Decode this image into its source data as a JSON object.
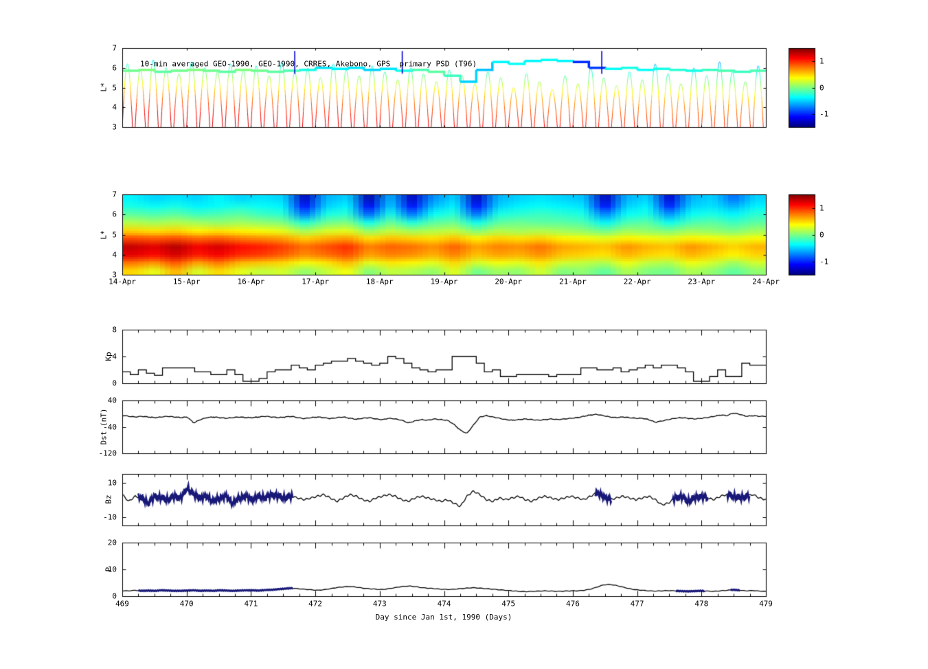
{
  "figure": {
    "bg": "#ffffff"
  },
  "xaxis": {
    "label": "Day since Jan 1st, 1990 (Days)",
    "tick_labels": [
      "469",
      "470",
      "471",
      "472",
      "473",
      "474",
      "475",
      "476",
      "477",
      "478",
      "479"
    ]
  },
  "chart_data": [
    {
      "id": "psd-passes",
      "type": "scatter",
      "title": "10-min averaged GEO-1990, GEO-1990, CRRES, Akebono, GPS  primary PSD (T96)",
      "ylabel": "L*",
      "ylim": [
        3,
        7
      ],
      "yticks": [
        7,
        6,
        5,
        4,
        3
      ],
      "xlim": [
        469,
        479
      ],
      "clim": [
        -1.5,
        1.5
      ],
      "colorbar_ticks": [
        1,
        0,
        -1
      ],
      "psd_profile": [
        [
          3,
          1.35
        ],
        [
          4,
          1.05
        ],
        [
          4.5,
          0.8
        ],
        [
          5,
          0.5
        ],
        [
          5.5,
          0.15
        ],
        [
          6,
          -0.15
        ],
        [
          6.5,
          -0.5
        ],
        [
          7,
          -0.7
        ]
      ],
      "time_fade": -0.35,
      "pass_width": 0.16,
      "passes": {
        "t0": 469.08,
        "dt": 0.2,
        "peaks": [
          6.2,
          5.9,
          6.4,
          6.0,
          5.7,
          6.3,
          6.0,
          5.8,
          6.2,
          5.9,
          6.1,
          5.6,
          6.3,
          5.8,
          6.0,
          5.5,
          6.2,
          5.9,
          5.6,
          6.1,
          5.8,
          5.4,
          6.0,
          5.7,
          5.3,
          5.9,
          5.6,
          5.2,
          5.8,
          5.5,
          5.0,
          5.7,
          5.3,
          4.9,
          5.6,
          5.2,
          6.0,
          5.5,
          5.1,
          5.8,
          5.4,
          6.2,
          5.7,
          5.2,
          6.0,
          5.6,
          6.3,
          5.8,
          5.3,
          6.1
        ]
      },
      "geo_band": {
        "x": [
          469,
          469.25,
          469.5,
          469.75,
          470,
          470.25,
          470.5,
          470.75,
          471,
          471.25,
          471.5,
          471.75,
          472,
          472.25,
          472.5,
          472.75,
          473,
          473.25,
          473.5,
          473.75,
          474,
          474.25,
          474.5,
          474.75,
          475,
          475.25,
          475.5,
          475.75,
          476,
          476.25,
          476.5,
          476.75,
          477,
          477.25,
          477.5,
          477.75,
          478,
          478.25,
          478.5,
          478.75,
          479
        ],
        "L": [
          5.85,
          5.9,
          5.8,
          5.85,
          5.9,
          5.85,
          5.8,
          5.9,
          5.85,
          5.8,
          5.85,
          5.9,
          6.0,
          5.95,
          6.0,
          5.9,
          5.95,
          5.85,
          5.9,
          5.8,
          5.6,
          5.3,
          5.9,
          6.3,
          6.2,
          6.35,
          6.4,
          6.35,
          6.3,
          6.0,
          5.95,
          6.0,
          5.9,
          5.95,
          5.9,
          5.85,
          5.9,
          5.85,
          5.8,
          5.85,
          5.8
        ],
        "v": [
          -0.05,
          0,
          -0.1,
          -0.05,
          0,
          -0.05,
          -0.1,
          0,
          -0.05,
          -0.1,
          -0.15,
          -0.3,
          -0.45,
          -0.4,
          -0.45,
          -0.5,
          -0.45,
          -0.3,
          -0.15,
          -0.1,
          -0.2,
          -0.5,
          -0.55,
          -0.4,
          -0.35,
          -0.4,
          -0.35,
          -0.4,
          -1.0,
          -0.95,
          -0.35,
          -0.3,
          -0.35,
          -0.3,
          -0.25,
          -0.3,
          -0.2,
          -0.15,
          -0.2,
          -0.15,
          -0.2
        ]
      },
      "blue_spikes": [
        471.68,
        473.35,
        476.45
      ]
    },
    {
      "id": "psd-heatmap",
      "type": "heatmap",
      "ylabel": "L*",
      "ylim": [
        3,
        7
      ],
      "yticks": [
        7,
        6,
        5,
        4,
        3
      ],
      "xlim": [
        469,
        479
      ],
      "xtick_labels": [
        "14-Apr",
        "15-Apr",
        "16-Apr",
        "17-Apr",
        "18-Apr",
        "19-Apr",
        "20-Apr",
        "21-Apr",
        "22-Apr",
        "23-Apr",
        "24-Apr"
      ],
      "clim": [
        -1.5,
        1.5
      ],
      "colorbar_ticks": [
        1,
        0,
        -1
      ],
      "grid": {
        "cols": 30,
        "rows": 10,
        "values": [
          [
            -0.4,
            -0.5,
            -0.45,
            -0.5,
            -0.4,
            -0.5,
            -0.45,
            -0.5,
            -1.3,
            -0.6,
            -0.5,
            -1.35,
            -0.6,
            -1.3,
            -0.7,
            -0.5,
            -1.3,
            -0.6,
            -0.5,
            -0.45,
            -0.5,
            -0.55,
            -1.3,
            -0.6,
            -0.5,
            -1.25,
            -0.6,
            -0.5,
            -0.8,
            -0.5
          ],
          [
            -0.3,
            -0.35,
            -0.3,
            -0.4,
            -0.35,
            -0.3,
            -0.35,
            -0.4,
            -1.1,
            -0.5,
            -0.4,
            -1.15,
            -0.5,
            -1.1,
            -0.55,
            -0.4,
            -1.1,
            -0.5,
            -0.4,
            -0.35,
            -0.4,
            -0.45,
            -1.1,
            -0.5,
            -0.4,
            -1.05,
            -0.5,
            -0.45,
            -0.6,
            -0.4
          ],
          [
            -0.1,
            -0.15,
            -0.1,
            -0.2,
            -0.15,
            -0.1,
            -0.2,
            -0.25,
            -0.8,
            -0.3,
            -0.25,
            -0.85,
            -0.3,
            -0.8,
            -0.35,
            -0.25,
            -0.8,
            -0.3,
            -0.25,
            -0.2,
            -0.25,
            -0.3,
            -0.75,
            -0.35,
            -0.3,
            -0.7,
            -0.35,
            -0.3,
            -0.4,
            -0.25
          ],
          [
            0.15,
            0.1,
            0.15,
            0.1,
            0.05,
            0.1,
            0.05,
            0,
            -0.3,
            -0.05,
            0,
            -0.35,
            -0.05,
            -0.3,
            -0.1,
            -0.05,
            -0.35,
            -0.1,
            -0.05,
            -0.1,
            -0.1,
            -0.15,
            -0.4,
            -0.15,
            -0.1,
            -0.35,
            -0.15,
            -0.1,
            -0.2,
            -0.1
          ],
          [
            0.5,
            0.45,
            0.5,
            0.4,
            0.45,
            0.4,
            0.35,
            0.3,
            0.1,
            0.25,
            0.3,
            0.05,
            0.2,
            0.1,
            0.15,
            0.2,
            0,
            0.15,
            0.1,
            0.15,
            0.1,
            0.05,
            -0.05,
            0.1,
            0.05,
            0,
            0.1,
            0.05,
            0,
            0.1
          ],
          [
            0.9,
            0.85,
            0.9,
            0.8,
            0.85,
            0.75,
            0.7,
            0.65,
            0.5,
            0.6,
            0.65,
            0.45,
            0.55,
            0.5,
            0.45,
            0.55,
            0.4,
            0.5,
            0.45,
            0.5,
            0.4,
            0.35,
            0.3,
            0.4,
            0.35,
            0.3,
            0.4,
            0.35,
            0.3,
            0.35
          ],
          [
            1.3,
            1.2,
            1.35,
            1.15,
            1.25,
            1.1,
            1.05,
            0.95,
            0.8,
            0.9,
            1.0,
            0.75,
            0.85,
            0.8,
            0.7,
            0.85,
            0.65,
            0.75,
            0.7,
            0.8,
            0.65,
            0.6,
            0.55,
            0.7,
            0.6,
            0.55,
            0.7,
            0.6,
            0.5,
            0.6
          ],
          [
            1.2,
            1.1,
            1.25,
            1.05,
            1.15,
            1.0,
            0.95,
            0.85,
            0.7,
            0.8,
            0.9,
            0.65,
            0.75,
            0.7,
            0.6,
            0.75,
            0.55,
            0.65,
            0.6,
            0.7,
            0.55,
            0.5,
            0.45,
            0.6,
            0.5,
            0.45,
            0.6,
            0.5,
            0.4,
            0.5
          ],
          [
            0.8,
            0.7,
            0.9,
            0.65,
            0.8,
            0.6,
            0.55,
            0.5,
            0.35,
            0.45,
            0.6,
            0.3,
            0.45,
            0.4,
            0.3,
            0.5,
            0.25,
            0.35,
            0.3,
            0.45,
            0.25,
            0.2,
            0.15,
            0.35,
            0.2,
            0.15,
            0.35,
            0.25,
            0.1,
            0.25
          ],
          [
            0.5,
            0.3,
            0.6,
            0.25,
            0.5,
            0.3,
            0.2,
            0.25,
            0.05,
            0.2,
            0.35,
            0,
            0.2,
            0.15,
            0.05,
            0.3,
            -0.05,
            0.1,
            0.05,
            0.25,
            0,
            0.05,
            -0.1,
            0.15,
            0,
            -0.05,
            0.15,
            0.05,
            -0.1,
            0.05
          ]
        ]
      }
    },
    {
      "id": "kp",
      "type": "line",
      "ylabel": "Kp",
      "ylim": [
        0,
        8
      ],
      "yticks": [
        8,
        4,
        0
      ],
      "xlim": [
        469,
        479
      ],
      "step_values": [
        1.7,
        1.3,
        2.0,
        1.5,
        1.2,
        2.3,
        2.3,
        2.3,
        2.3,
        1.7,
        1.7,
        1.3,
        1.3,
        2.0,
        1.3,
        0.3,
        0.3,
        0.7,
        1.7,
        2.0,
        2.0,
        2.7,
        2.3,
        2.0,
        2.7,
        3.0,
        3.3,
        3.3,
        3.7,
        3.3,
        3.0,
        2.7,
        3.0,
        4.0,
        3.7,
        3.0,
        2.3,
        2.0,
        1.7,
        2.0,
        2.0,
        4.0,
        4.0,
        4.0,
        3.0,
        1.7,
        2.0,
        1.0,
        1.0,
        1.3,
        1.3,
        1.3,
        1.3,
        1.0,
        1.3,
        1.3,
        1.3,
        2.3,
        2.3,
        2.0,
        2.0,
        2.3,
        1.7,
        2.0,
        2.3,
        2.7,
        2.3,
        2.7,
        2.7,
        2.3,
        1.7,
        0.3,
        0.3,
        1.0,
        2.0,
        1.0,
        1.0,
        3.0,
        2.7,
        2.7
      ]
    },
    {
      "id": "dst",
      "type": "line",
      "ylabel": "Dst (nT)",
      "ylim": [
        -120,
        40
      ],
      "yticks": [
        40,
        -40,
        -120
      ],
      "xlim": [
        469,
        479
      ],
      "values": [
        -5,
        -8,
        -10,
        -8,
        -10,
        -12,
        -10,
        -8,
        -10,
        -12,
        -10,
        -28,
        -18,
        -12,
        -10,
        -12,
        -14,
        -12,
        -10,
        -12,
        -12,
        -10,
        -8,
        -10,
        -12,
        -10,
        -8,
        -12,
        -15,
        -12,
        -10,
        -12,
        -15,
        -12,
        -10,
        -14,
        -17,
        -14,
        -12,
        -16,
        -18,
        -14,
        -16,
        -20,
        -28,
        -22,
        -18,
        -20,
        -16,
        -18,
        -20,
        -32,
        -50,
        -60,
        -35,
        -10,
        -6,
        -10,
        -14,
        -18,
        -20,
        -18,
        -16,
        -18,
        -20,
        -18,
        -16,
        -18,
        -16,
        -14,
        -12,
        -8,
        -4,
        -2,
        -6,
        -10,
        -12,
        -10,
        -12,
        -14,
        -14,
        -18,
        -26,
        -22,
        -18,
        -14,
        -12,
        -14,
        -16,
        -14,
        -12,
        -8,
        -4,
        -6,
        2,
        -2,
        -8,
        -6,
        -8,
        -8
      ]
    },
    {
      "id": "bz",
      "type": "line",
      "ylabel": "Bz",
      "ylim": [
        -15,
        15
      ],
      "yticks": [
        10,
        -10
      ],
      "xlim": [
        469,
        479
      ],
      "highlight_color": "#181878",
      "highlight_ranges": [
        [
          469.25,
          471.65
        ],
        [
          476.35,
          476.6
        ],
        [
          477.55,
          478.1
        ],
        [
          478.4,
          478.75
        ]
      ],
      "values": [
        3,
        -1,
        2,
        1,
        -2,
        2,
        1,
        0,
        2,
        1,
        7,
        3,
        1,
        2,
        -1,
        1,
        2,
        -2,
        1,
        2,
        0,
        2,
        1,
        3,
        2,
        1,
        2,
        1,
        0,
        1,
        2,
        3,
        1,
        -1,
        1,
        3,
        2,
        0,
        -1,
        1,
        2,
        3,
        2,
        0,
        -1,
        1,
        2,
        1,
        0,
        -1,
        0,
        -2,
        -4,
        2,
        5,
        3,
        0,
        -1,
        1,
        0,
        1,
        2,
        0,
        -1,
        1,
        2,
        1,
        0,
        1,
        2,
        1,
        0,
        2,
        4,
        2,
        0,
        1,
        2,
        1,
        0,
        1,
        2,
        0,
        -3,
        -2,
        1,
        2,
        -1,
        1,
        2,
        1,
        0,
        2,
        3,
        2,
        1,
        2,
        3,
        1,
        0
      ]
    },
    {
      "id": "p",
      "type": "line",
      "ylabel": "P",
      "ylim": [
        0,
        20
      ],
      "yticks": [
        20,
        10,
        0
      ],
      "xlim": [
        469,
        479
      ],
      "highlight_color": "#181878",
      "highlight_ranges": [
        [
          469.25,
          471.65
        ],
        [
          477.6,
          478.05
        ],
        [
          478.45,
          478.6
        ]
      ],
      "values": [
        2.0,
        2.0,
        2.2,
        2.0,
        2.1,
        2.0,
        2.2,
        2.1,
        2.0,
        2.0,
        2.1,
        2.2,
        2.0,
        2.1,
        2.0,
        2.2,
        2.1,
        2.0,
        2.1,
        2.2,
        2.2,
        2.1,
        2.3,
        2.4,
        2.6,
        2.8,
        3.0,
        2.8,
        2.6,
        2.4,
        2.2,
        2.4,
        2.8,
        3.2,
        3.5,
        3.6,
        3.4,
        3.0,
        2.8,
        2.6,
        2.5,
        2.8,
        3.2,
        3.6,
        3.8,
        3.6,
        3.2,
        3.0,
        2.8,
        2.6,
        2.5,
        2.6,
        2.8,
        3.0,
        3.2,
        3.0,
        2.8,
        2.6,
        2.4,
        2.2,
        2.0,
        1.8,
        1.7,
        1.8,
        1.9,
        2.0,
        1.9,
        1.8,
        1.9,
        2.0,
        2.0,
        2.2,
        2.6,
        3.4,
        4.2,
        4.4,
        4.0,
        3.4,
        2.8,
        2.4,
        2.2,
        2.0,
        1.9,
        2.0,
        2.1,
        2.0,
        1.9,
        1.8,
        1.9,
        2.0,
        1.9,
        1.8,
        2.0,
        2.2,
        2.4,
        2.2,
        2.0,
        2.1,
        1.9,
        1.8
      ]
    }
  ]
}
